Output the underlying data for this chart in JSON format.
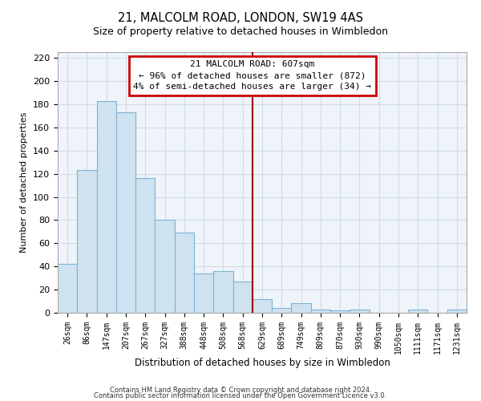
{
  "title": "21, MALCOLM ROAD, LONDON, SW19 4AS",
  "subtitle": "Size of property relative to detached houses in Wimbledon",
  "xlabel": "Distribution of detached houses by size in Wimbledon",
  "ylabel": "Number of detached properties",
  "bar_labels": [
    "26sqm",
    "86sqm",
    "147sqm",
    "207sqm",
    "267sqm",
    "327sqm",
    "388sqm",
    "448sqm",
    "508sqm",
    "568sqm",
    "629sqm",
    "689sqm",
    "749sqm",
    "809sqm",
    "870sqm",
    "930sqm",
    "990sqm",
    "1050sqm",
    "1111sqm",
    "1171sqm",
    "1231sqm"
  ],
  "bar_values": [
    42,
    123,
    183,
    173,
    116,
    80,
    69,
    34,
    36,
    27,
    12,
    4,
    8,
    3,
    2,
    3,
    0,
    0,
    3,
    0,
    3
  ],
  "bar_color": "#cfe2f0",
  "bar_edge_color": "#7fb3d3",
  "annotation_title": "21 MALCOLM ROAD: 607sqm",
  "annotation_line1": "← 96% of detached houses are smaller (872)",
  "annotation_line2": "4% of semi-detached houses are larger (34) →",
  "vline_color": "#990000",
  "box_edge_color": "#cc0000",
  "box_fill_color": "#ffffff",
  "ylim": [
    0,
    225
  ],
  "yticks": [
    0,
    20,
    40,
    60,
    80,
    100,
    120,
    140,
    160,
    180,
    200,
    220
  ],
  "footer1": "Contains HM Land Registry data © Crown copyright and database right 2024.",
  "footer2": "Contains public sector information licensed under the Open Government Licence v3.0.",
  "vline_bar_index": 10,
  "grid_color": "#d0dce8",
  "bg_color": "#eef4f9"
}
